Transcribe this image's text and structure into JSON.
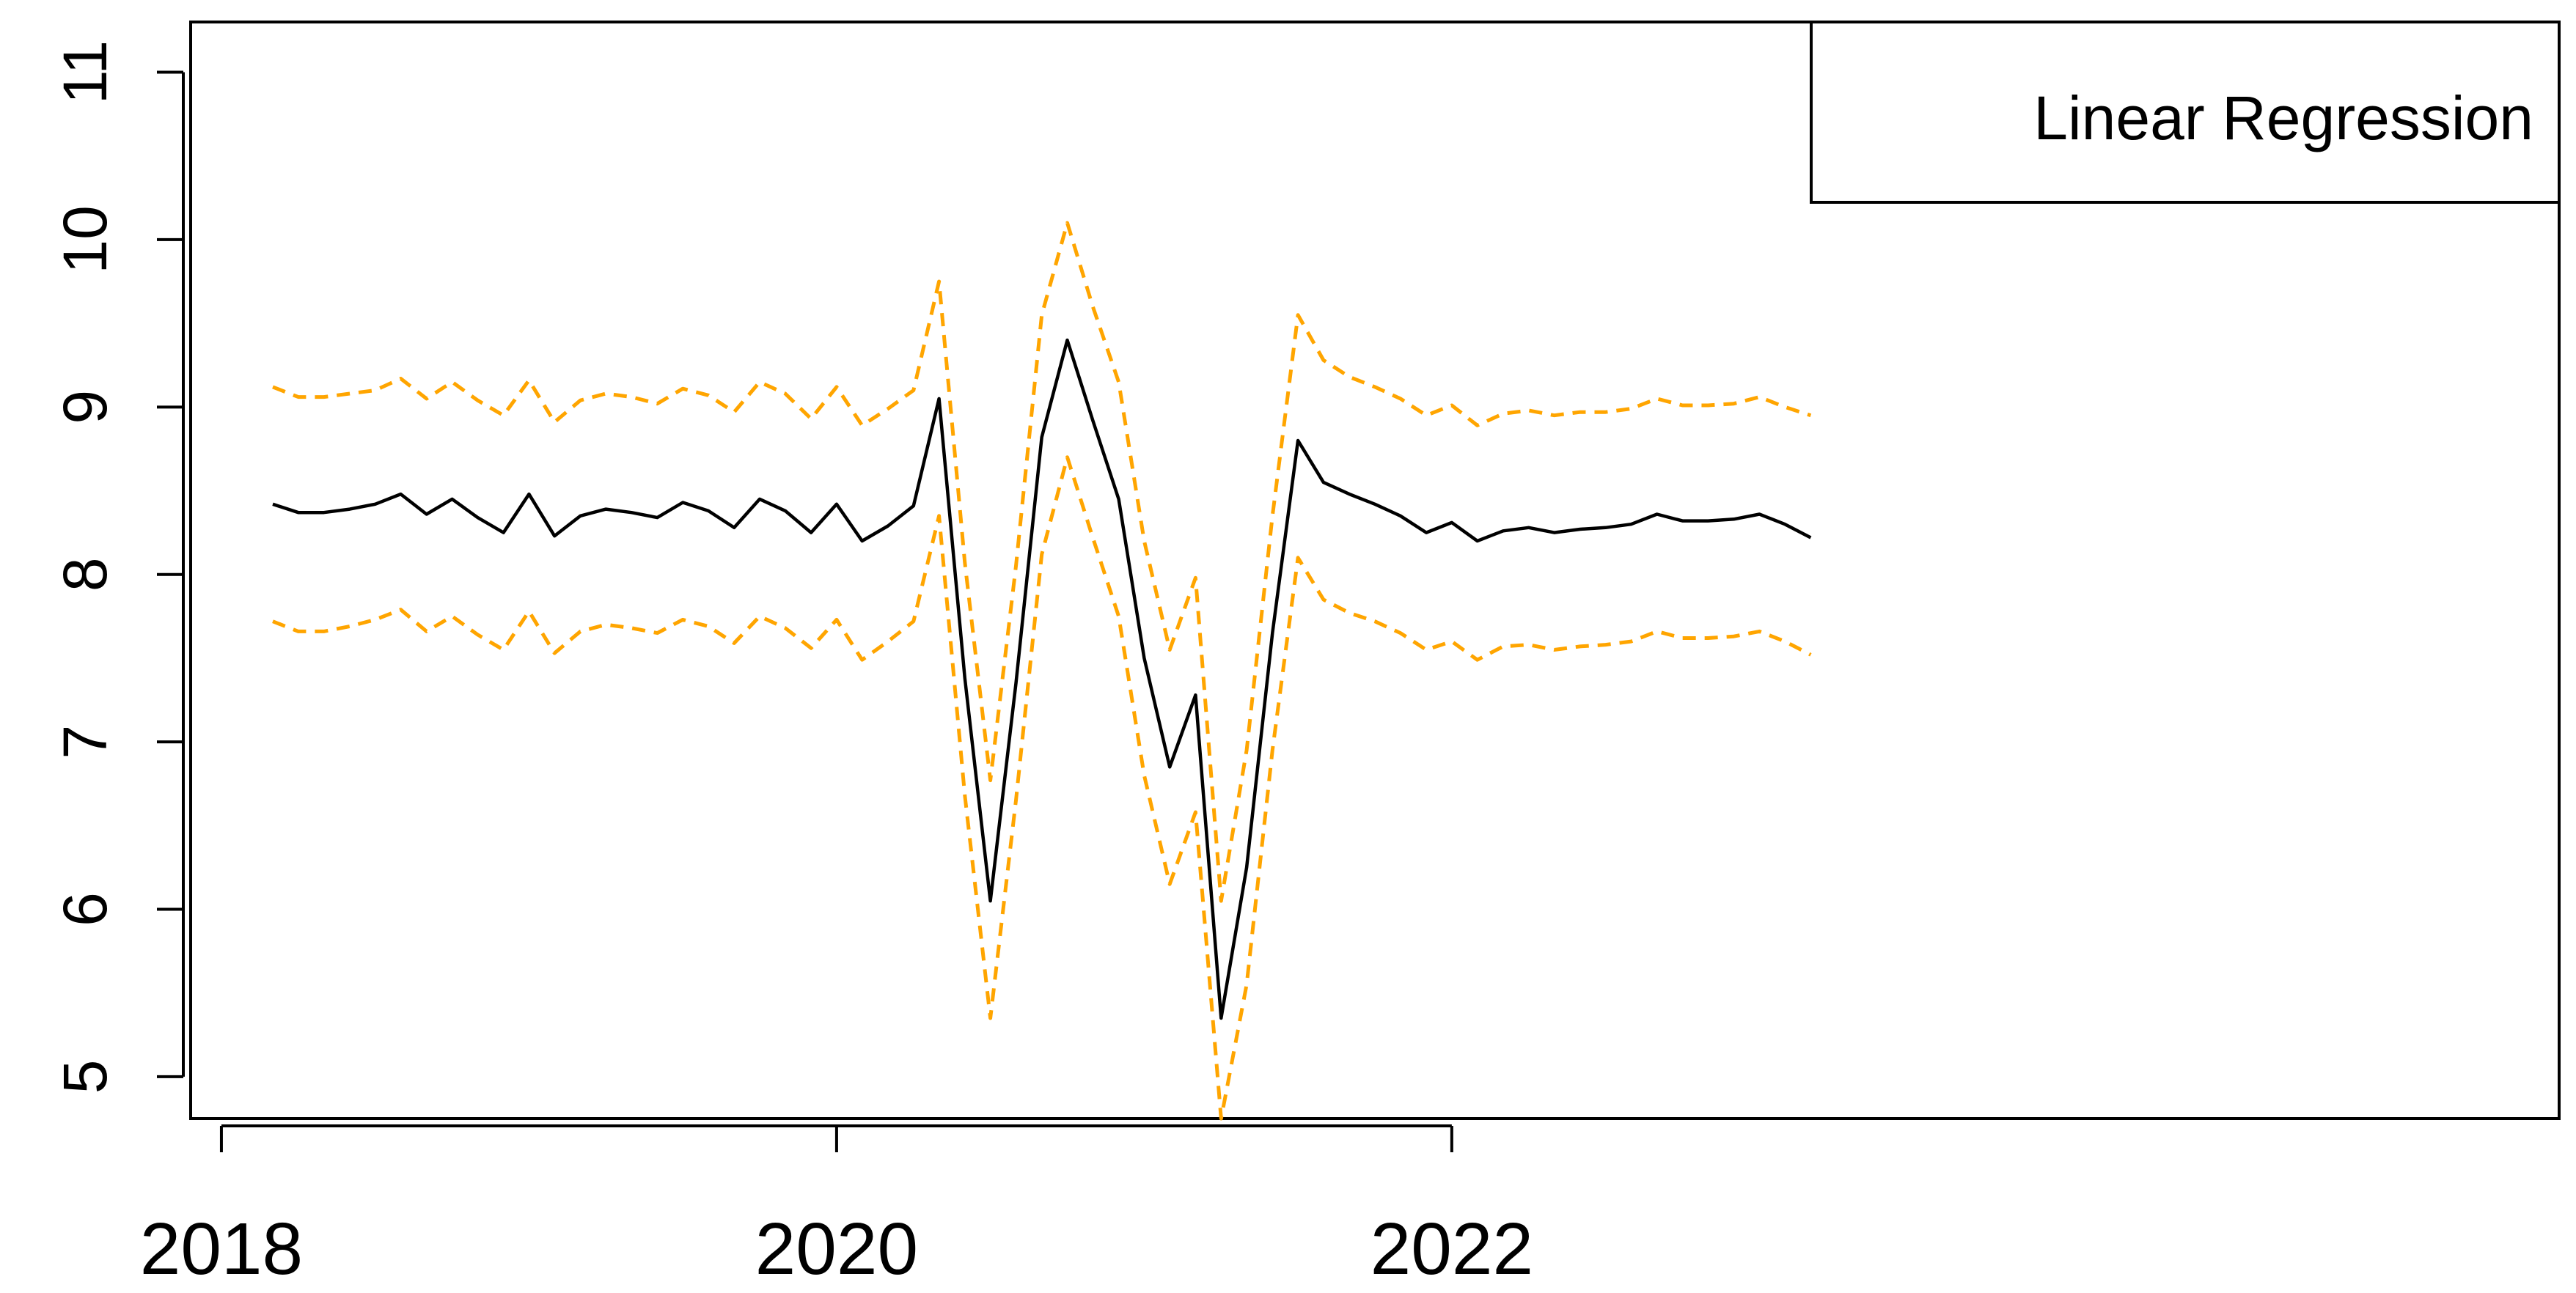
{
  "chart_data": {
    "type": "line",
    "xlabel": "",
    "ylabel": "",
    "xlim": [
      2017.9,
      2025.6
    ],
    "ylim": [
      4.75,
      11.3
    ],
    "x_ticks": [
      {
        "value": 2018,
        "label": "2018"
      },
      {
        "value": 2020,
        "label": "2020"
      },
      {
        "value": 2022,
        "label": "2022"
      }
    ],
    "y_ticks": [
      {
        "value": 5,
        "label": "5"
      },
      {
        "value": 6,
        "label": "6"
      },
      {
        "value": 7,
        "label": "7"
      },
      {
        "value": 8,
        "label": "8"
      },
      {
        "value": 9,
        "label": "9"
      },
      {
        "value": 10,
        "label": "10"
      },
      {
        "value": 11,
        "label": "11"
      }
    ],
    "grid": false,
    "legend": {
      "position": "top-right",
      "entries": [
        "Linear Regression"
      ]
    },
    "colors": {
      "fit": "#000000",
      "bounds": "#ffa500",
      "axes": "#000000"
    },
    "x": [
      2018.167,
      2018.25,
      2018.333,
      2018.417,
      2018.5,
      2018.583,
      2018.667,
      2018.75,
      2018.833,
      2018.917,
      2019.0,
      2019.083,
      2019.167,
      2019.25,
      2019.333,
      2019.417,
      2019.5,
      2019.583,
      2019.667,
      2019.75,
      2019.833,
      2019.917,
      2020.0,
      2020.083,
      2020.167,
      2020.25,
      2020.333,
      2020.417,
      2020.5,
      2020.583,
      2020.667,
      2020.75,
      2020.833,
      2020.917,
      2021.0,
      2021.083,
      2021.167,
      2021.25,
      2021.333,
      2021.417,
      2021.5,
      2021.583,
      2021.667,
      2021.75,
      2021.833,
      2021.917,
      2022.0,
      2022.083,
      2022.167,
      2022.25,
      2022.333,
      2022.417,
      2022.5,
      2022.583,
      2022.667,
      2022.75,
      2022.833,
      2022.917,
      2023.0,
      2023.083,
      2023.167
    ],
    "series": [
      {
        "style": "solid",
        "values": [
          8.42,
          8.37,
          8.37,
          8.39,
          8.42,
          8.48,
          8.36,
          8.45,
          8.34,
          8.25,
          8.48,
          8.23,
          8.35,
          8.39,
          8.37,
          8.34,
          8.43,
          8.38,
          8.28,
          8.45,
          8.38,
          8.25,
          8.42,
          8.2,
          8.29,
          8.41,
          9.05,
          7.38,
          6.05,
          7.35,
          8.82,
          9.4,
          8.92,
          8.45,
          7.5,
          6.85,
          7.28,
          5.35,
          6.25,
          7.65,
          8.8,
          8.55,
          8.48,
          8.42,
          8.35,
          8.25,
          8.31,
          8.2,
          8.26,
          8.28,
          8.25,
          8.27,
          8.28,
          8.3,
          8.36,
          8.32,
          8.32,
          8.33,
          8.36,
          8.3,
          8.22
        ]
      },
      {
        "style": "dashed",
        "values": [
          9.12,
          9.06,
          9.06,
          9.08,
          9.1,
          9.17,
          9.05,
          9.15,
          9.04,
          8.95,
          9.16,
          8.91,
          9.04,
          9.08,
          9.06,
          9.02,
          9.11,
          9.07,
          8.97,
          9.15,
          9.08,
          8.93,
          9.12,
          8.89,
          8.99,
          9.1,
          9.75,
          8.07,
          6.77,
          8.05,
          9.55,
          10.1,
          9.6,
          9.15,
          8.2,
          7.55,
          7.98,
          6.05,
          6.95,
          8.35,
          9.55,
          9.28,
          9.18,
          9.12,
          9.05,
          8.95,
          9.01,
          8.89,
          8.96,
          8.98,
          8.95,
          8.97,
          8.97,
          8.99,
          9.05,
          9.01,
          9.01,
          9.02,
          9.06,
          9.0,
          8.95
        ]
      },
      {
        "style": "dashed",
        "values": [
          7.72,
          7.66,
          7.66,
          7.69,
          7.73,
          7.79,
          7.66,
          7.75,
          7.64,
          7.55,
          7.78,
          7.53,
          7.66,
          7.7,
          7.68,
          7.65,
          7.73,
          7.69,
          7.59,
          7.75,
          7.68,
          7.56,
          7.73,
          7.49,
          7.6,
          7.72,
          8.35,
          6.68,
          5.35,
          6.65,
          8.12,
          8.7,
          8.22,
          7.75,
          6.8,
          6.15,
          6.58,
          4.75,
          5.55,
          6.95,
          8.1,
          7.85,
          7.77,
          7.72,
          7.65,
          7.55,
          7.6,
          7.49,
          7.57,
          7.58,
          7.55,
          7.57,
          7.58,
          7.6,
          7.66,
          7.62,
          7.62,
          7.63,
          7.66,
          7.6,
          7.52
        ]
      }
    ]
  }
}
